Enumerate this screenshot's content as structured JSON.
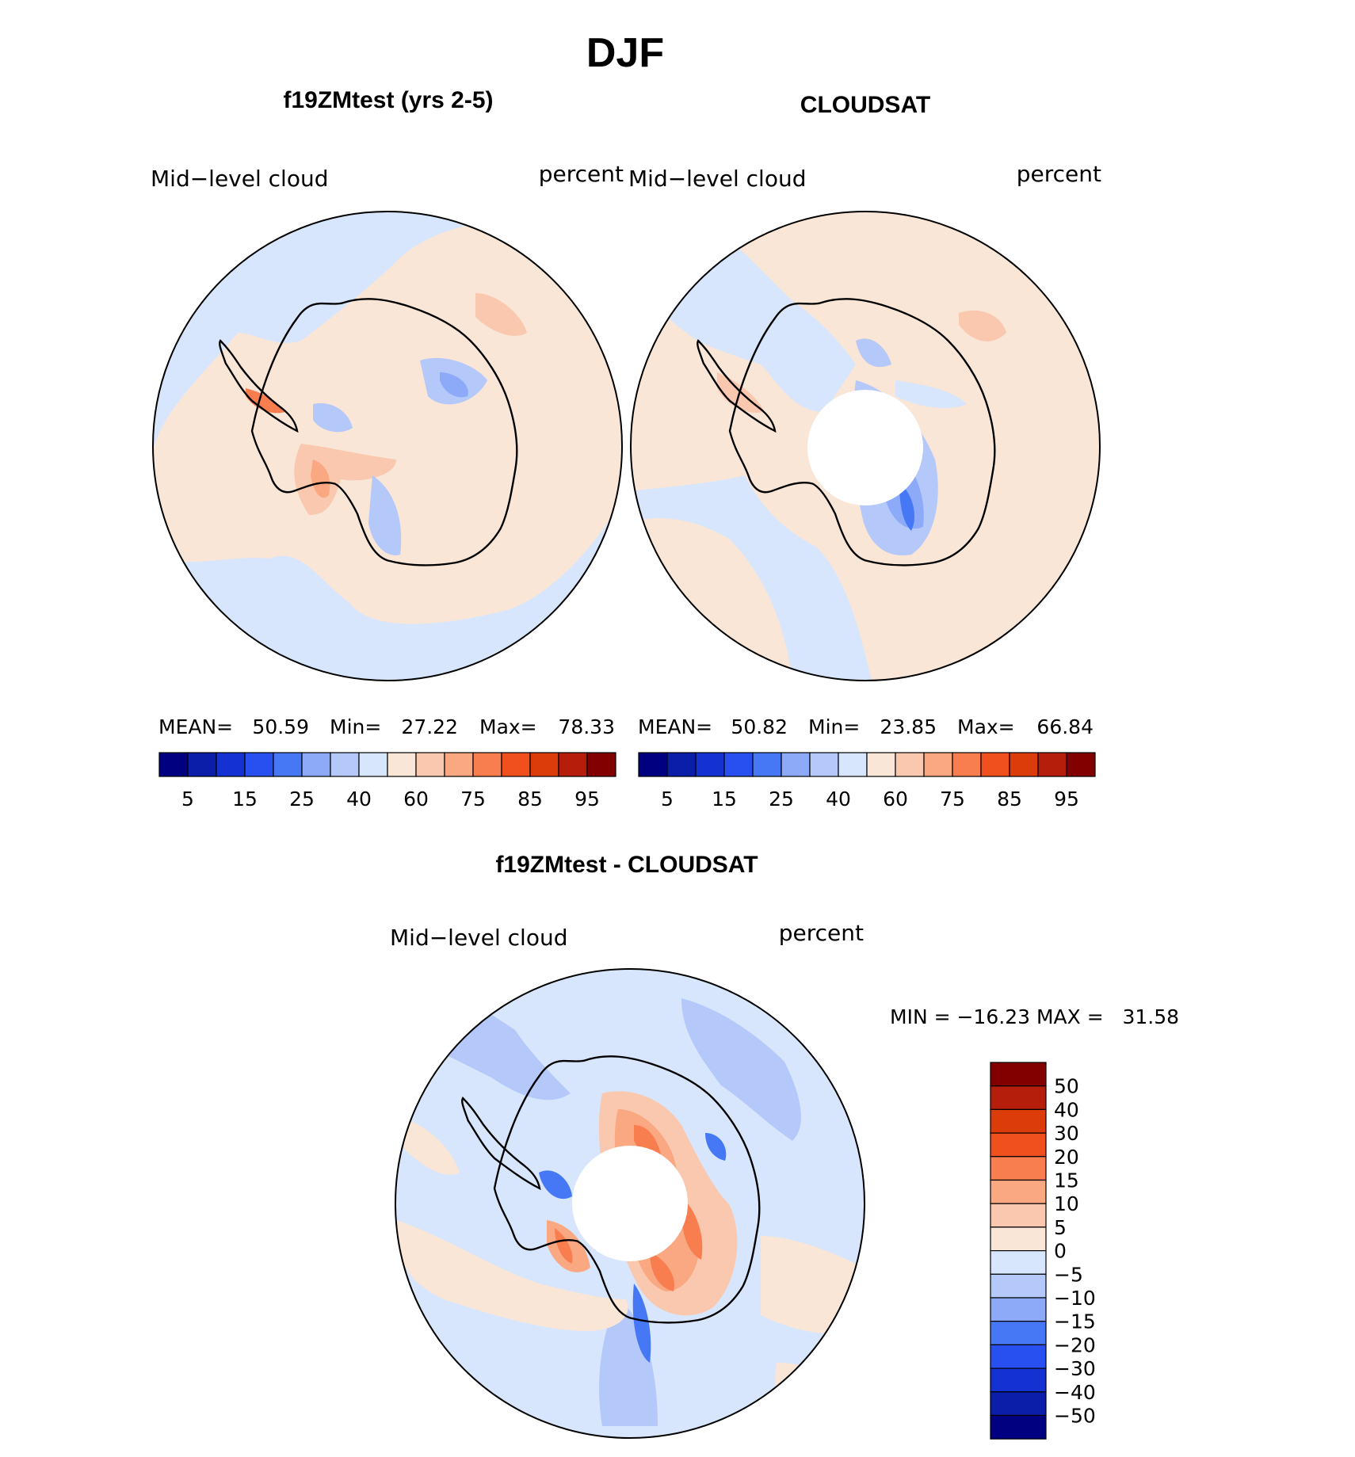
{
  "figure": {
    "season_title": "DJF",
    "panels": [
      {
        "id": "model",
        "title": "f19ZMtest (yrs 2-5)",
        "left_label": "Mid−level cloud",
        "right_label": "percent",
        "stats": {
          "mean_label": "MEAN=",
          "mean": "50.59",
          "min_label": "Min=",
          "min": "27.22",
          "max_label": "Max=",
          "max": "78.33"
        }
      },
      {
        "id": "obs",
        "title": "CLOUDSAT",
        "left_label": "Mid−level cloud",
        "right_label": "percent",
        "stats": {
          "mean_label": "MEAN=",
          "mean": "50.82",
          "min_label": "Min=",
          "min": "23.85",
          "max_label": "Max=",
          "max": "66.84"
        }
      },
      {
        "id": "diff",
        "title": "f19ZMtest - CLOUDSAT",
        "left_label": "Mid−level cloud",
        "right_label": "percent",
        "minmax": "MIN = −16.23 MAX =   31.58"
      }
    ],
    "horizontal_colorbar": {
      "colors": [
        "#000080",
        "#0a1eaa",
        "#1432d2",
        "#2850f0",
        "#4678f5",
        "#8caaf8",
        "#b4c8fa",
        "#d7e6fc",
        "#fae6d7",
        "#fac8af",
        "#f9a882",
        "#f87e50",
        "#f0501e",
        "#dc3c0a",
        "#b41e0a",
        "#820000"
      ],
      "tick_labels": [
        "5",
        "15",
        "25",
        "40",
        "60",
        "75",
        "85",
        "95"
      ]
    },
    "vertical_colorbar": {
      "colors_top_to_bottom": [
        "#820000",
        "#b41e0a",
        "#dc3c0a",
        "#f0501e",
        "#f87e50",
        "#f9a882",
        "#fac8af",
        "#fae6d7",
        "#d7e6fc",
        "#b4c8fa",
        "#8caaf8",
        "#4678f5",
        "#2850f0",
        "#1432d2",
        "#0a1eaa",
        "#000080"
      ],
      "tick_labels": [
        "50",
        "40",
        "30",
        "20",
        "15",
        "10",
        "5",
        "0",
        "−5",
        "−10",
        "−15",
        "−20",
        "−30",
        "−40",
        "−50"
      ]
    },
    "map_colors": {
      "pale_blue": "#d7e6fc",
      "light_blue": "#b4c8fa",
      "mid_blue": "#8caaf8",
      "blue": "#4678f5",
      "pale_orange": "#fae6d7",
      "light_orange": "#fac8af",
      "orange": "#f9a882",
      "red_orange": "#f87e50",
      "red": "#f0501e"
    }
  }
}
